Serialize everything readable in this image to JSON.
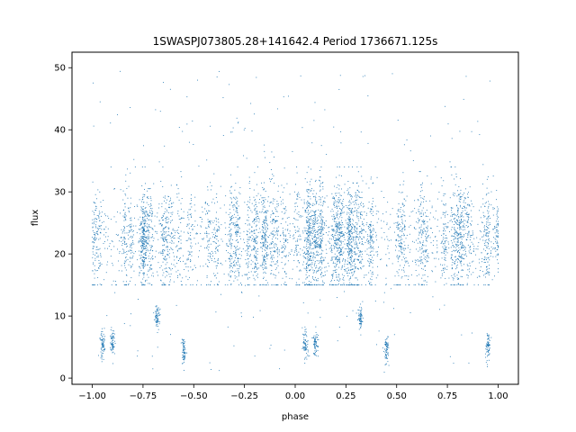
{
  "chart_data": {
    "type": "scatter",
    "title": "1SWASPJ073805.28+141642.4 Period 1736671.125s",
    "xlabel": "phase",
    "ylabel": "flux",
    "xlim": [
      -1.1,
      1.1
    ],
    "ylim": [
      -1.0,
      52.5
    ],
    "x_ticks": [
      -1.0,
      -0.75,
      -0.5,
      -0.25,
      0.0,
      0.25,
      0.5,
      0.75,
      1.0
    ],
    "x_tick_labels": [
      "−1.00",
      "−0.75",
      "−0.50",
      "−0.25",
      "0.00",
      "0.25",
      "0.50",
      "0.75",
      "1.00"
    ],
    "y_ticks": [
      0,
      10,
      20,
      30,
      40,
      50
    ],
    "y_tick_labels": [
      "0",
      "10",
      "20",
      "30",
      "40",
      "50"
    ],
    "grid": false,
    "marker_color": "#1f77b4",
    "series": [
      {
        "x_range": [
          -1.0,
          1.0
        ],
        "main_band": {
          "center": 22.5,
          "spread": 4.2,
          "min": 15,
          "max": 34
        },
        "low_clusters": [
          {
            "x": -0.95,
            "y": 5.5
          },
          {
            "x": -0.9,
            "y": 5.5
          },
          {
            "x": 0.05,
            "y": 5.5
          },
          {
            "x": 0.1,
            "y": 5.5
          },
          {
            "x": -0.55,
            "y": 4.5
          },
          {
            "x": 0.45,
            "y": 4.5
          },
          {
            "x": 0.95,
            "y": 5.0
          },
          {
            "x": -0.68,
            "y": 9.5
          },
          {
            "x": 0.32,
            "y": 9.5
          }
        ],
        "outliers_max": 49.5
      }
    ]
  }
}
